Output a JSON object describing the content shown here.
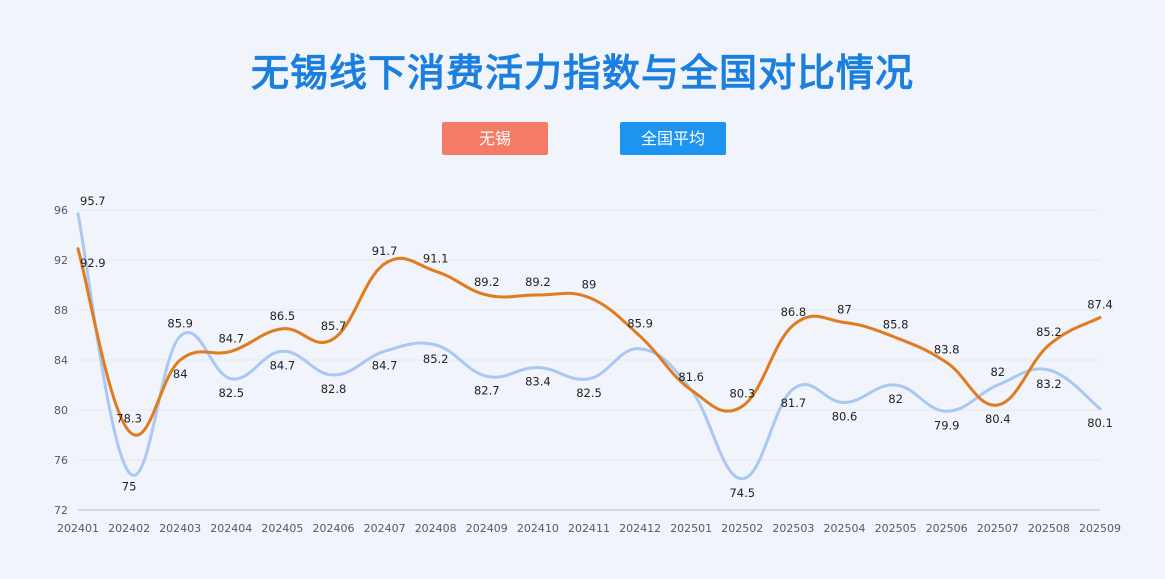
{
  "chart_data": {
    "type": "line",
    "title": "无锡线下消费活力指数与全国对比情况",
    "categories": [
      "202401",
      "202402",
      "202403",
      "202404",
      "202405",
      "202406",
      "202407",
      "202408",
      "202409",
      "202410",
      "202411",
      "202412",
      "202501",
      "202502",
      "202503",
      "202504",
      "202505",
      "202506",
      "202507",
      "202508",
      "202509"
    ],
    "series": [
      {
        "name": "无锡",
        "color": "#e07b1e",
        "legend_color": "#f47b66",
        "values": [
          92.9,
          78.3,
          84,
          84.7,
          86.5,
          85.7,
          91.7,
          91.1,
          89.2,
          89.2,
          89,
          85.9,
          81.6,
          80.3,
          86.8,
          87,
          85.8,
          83.8,
          80.4,
          85.2,
          87.4
        ]
      },
      {
        "name": "全国平均",
        "color": "#a9c8f3",
        "legend_color": "#1d95f0",
        "values": [
          95.7,
          75,
          85.9,
          82.5,
          84.7,
          82.8,
          84.7,
          85.2,
          82.7,
          83.4,
          82.5,
          84.9,
          81.6,
          74.5,
          81.7,
          80.6,
          82,
          79.9,
          82,
          83.2,
          80.1
        ]
      }
    ],
    "label_mask": [
      [
        true,
        true,
        true,
        true,
        true,
        true,
        true,
        true,
        true,
        true,
        true,
        true,
        false,
        true,
        true,
        true,
        true,
        true,
        true,
        true,
        true
      ],
      [
        true,
        true,
        true,
        true,
        true,
        true,
        true,
        true,
        true,
        true,
        true,
        false,
        true,
        true,
        true,
        true,
        true,
        true,
        true,
        true,
        true
      ]
    ],
    "yticks": [
      72,
      76,
      80,
      84,
      88,
      92,
      96
    ],
    "ylim": [
      72,
      96
    ],
    "xlabel": "",
    "ylabel": "",
    "grid": true,
    "legend_position": "top-center"
  }
}
